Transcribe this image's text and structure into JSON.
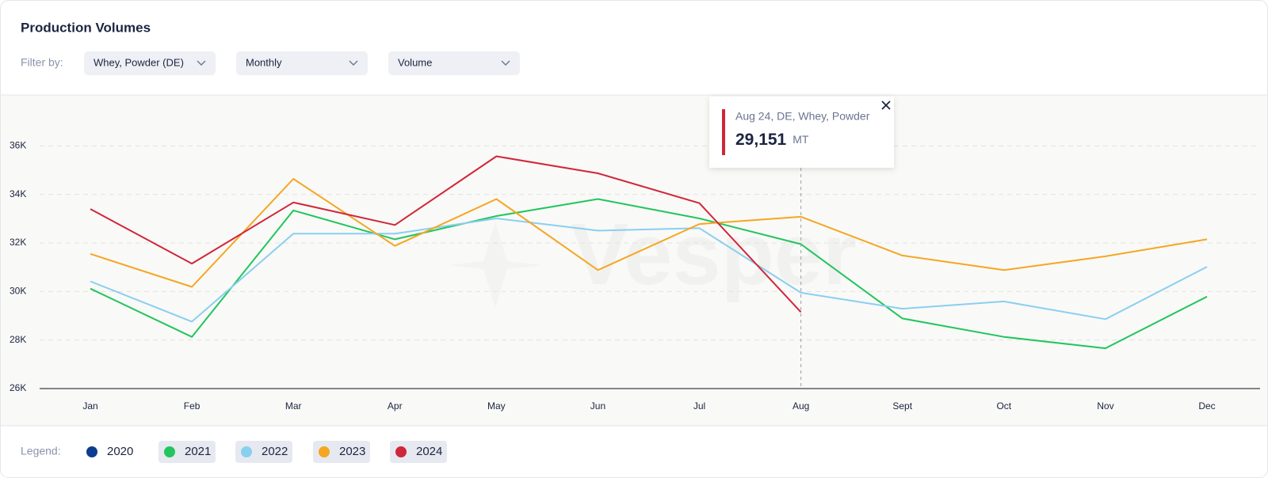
{
  "header": {
    "title": "Production Volumes",
    "filter_label": "Filter by:",
    "filters": [
      "Whey, Powder (DE)",
      "Monthly",
      "Volume"
    ]
  },
  "watermark": "Vesper",
  "tooltip": {
    "title": "Aug 24, DE, Whey, Powder",
    "value_label": "29,151",
    "unit": "MT"
  },
  "legend_label": "Legend:",
  "chart_data": {
    "type": "line",
    "categories": [
      "Jan",
      "Feb",
      "Mar",
      "Apr",
      "May",
      "Jun",
      "Jul",
      "Aug",
      "Sept",
      "Oct",
      "Nov",
      "Dec"
    ],
    "ylim": [
      26000,
      38000
    ],
    "yticks": [
      {
        "value": 26000,
        "label": "26K"
      },
      {
        "value": 28000,
        "label": "28K"
      },
      {
        "value": 30000,
        "label": "30K"
      },
      {
        "value": 32000,
        "label": "32K"
      },
      {
        "value": 34000,
        "label": "34K"
      },
      {
        "value": 36000,
        "label": "36K"
      }
    ],
    "grid": true,
    "series": [
      {
        "name": "2020",
        "color": "#0b3d91",
        "values": [
          null,
          null,
          null,
          null,
          null,
          null,
          null,
          null,
          null,
          null,
          null,
          null
        ]
      },
      {
        "name": "2021",
        "color": "#22c55e",
        "values": [
          30120,
          28130,
          33340,
          32150,
          33110,
          33810,
          33010,
          31950,
          28890,
          28130,
          27660,
          29790
        ]
      },
      {
        "name": "2022",
        "color": "#89cff0",
        "values": [
          30420,
          28760,
          32380,
          32380,
          33010,
          32510,
          32610,
          29950,
          29290,
          29590,
          28860,
          31020
        ]
      },
      {
        "name": "2023",
        "color": "#f5a623",
        "values": [
          31550,
          30190,
          34640,
          31880,
          33810,
          30880,
          32780,
          33080,
          31480,
          30880,
          31450,
          32150
        ]
      },
      {
        "name": "2024",
        "color": "#d0263a",
        "values": [
          33400,
          31150,
          33670,
          32740,
          35570,
          34870,
          33640,
          29151,
          null,
          null,
          null,
          null
        ]
      }
    ]
  }
}
